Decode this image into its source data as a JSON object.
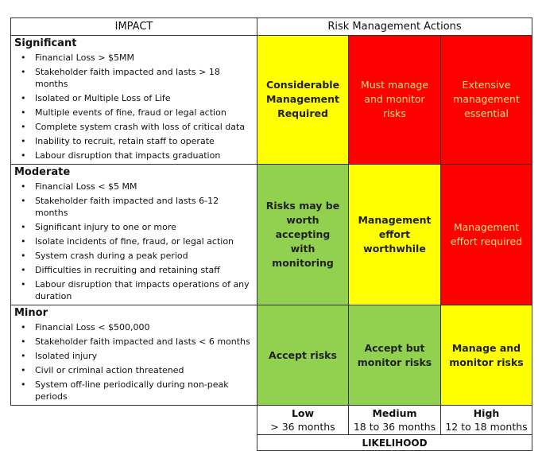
{
  "headers": {
    "impact": "IMPACT",
    "actions": "Risk Management Actions"
  },
  "colors": {
    "yellow": "#ffff00",
    "red": "#ff0000",
    "green": "#92d050"
  },
  "rows": [
    {
      "title": "Significant",
      "items": [
        "Financial Loss > $5MM",
        "Stakeholder faith impacted and lasts  > 18 months",
        "Isolated or Multiple Loss of Life",
        "Multiple events of fine, fraud or legal action",
        "Complete system crash with loss of critical data",
        "Inability to recruit, retain staff to operate",
        "Labour disruption that impacts graduation"
      ],
      "cells": [
        {
          "text": "Considerable Management Required",
          "color": "yellow"
        },
        {
          "text": "Must manage and monitor risks",
          "color": "red"
        },
        {
          "text": "Extensive management essential",
          "color": "red"
        }
      ]
    },
    {
      "title": "Moderate",
      "items": [
        "Financial Loss < $5 MM",
        "Stakeholder faith impacted and lasts  6-12 months",
        "Significant injury to one or more",
        "Isolate incidents of fine, fraud, or legal action",
        "System crash during a peak period",
        "Difficulties in recruiting and retaining staff",
        "Labour disruption that impacts operations of any duration"
      ],
      "cells": [
        {
          "text": "Risks may be worth accepting with monitoring",
          "color": "green"
        },
        {
          "text": "Management effort worthwhile",
          "color": "yellow"
        },
        {
          "text": "Management effort required",
          "color": "red"
        }
      ]
    },
    {
      "title": "Minor",
      "items": [
        "Financial Loss < $500,000",
        "Stakeholder faith impacted and lasts  < 6 months",
        "Isolated injury",
        "Civil or criminal action threatened",
        "System off-line periodically during non-peak periods"
      ],
      "cells": [
        {
          "text": "Accept risks",
          "color": "green"
        },
        {
          "text": "Accept but monitor risks",
          "color": "green"
        },
        {
          "text": "Manage and monitor risks",
          "color": "yellow"
        }
      ]
    }
  ],
  "likelihood": {
    "title": "LIKELIHOOD",
    "levels": [
      {
        "label": "Low",
        "range": "> 36 months"
      },
      {
        "label": "Medium",
        "range": "18 to 36 months"
      },
      {
        "label": "High",
        "range": "12 to 18 months"
      }
    ]
  }
}
